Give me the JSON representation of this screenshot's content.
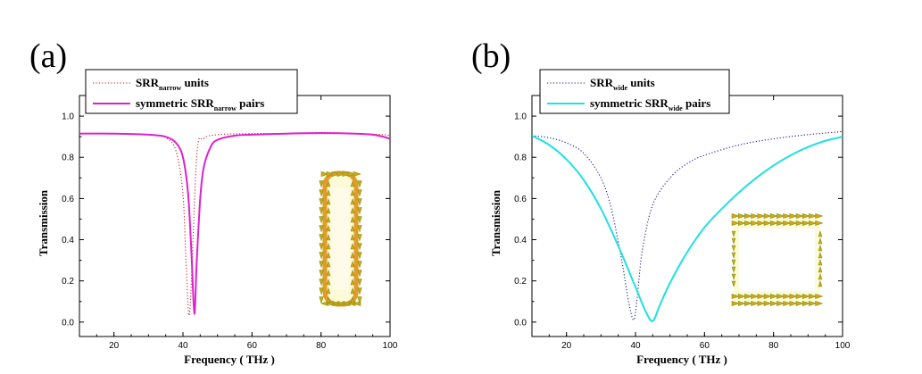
{
  "chart_data": [
    {
      "type": "line",
      "panel_label": "(a)",
      "xlabel": "Frequency ( THz )",
      "ylabel": "Transmission",
      "xlim": [
        10,
        100
      ],
      "ylim": [
        -0.07,
        1.1
      ],
      "xticks": [
        20,
        40,
        60,
        80,
        100
      ],
      "yticks": [
        0.0,
        0.2,
        0.4,
        0.6,
        0.8,
        1.0
      ],
      "ytick_labels": [
        "0.0",
        "0.2",
        "0.4",
        "0.6",
        "0.8",
        "1.0"
      ],
      "legend_position": "top-left",
      "series": [
        {
          "name": "SRR narrow units",
          "legend": {
            "base": "SRR",
            "sub": "narrow",
            "suffix": " units"
          },
          "color": "#cc2222",
          "style": "dotted",
          "x": [
            10,
            20,
            30,
            35,
            38,
            40,
            41,
            42,
            44,
            46,
            50,
            60,
            70,
            80,
            90,
            98,
            100
          ],
          "y": [
            0.915,
            0.915,
            0.91,
            0.895,
            0.83,
            0.62,
            0.25,
            0.055,
            0.81,
            0.89,
            0.91,
            0.915,
            0.915,
            0.915,
            0.915,
            0.91,
            0.905
          ]
        },
        {
          "name": "symmetric SRR narrow pairs",
          "legend": {
            "base": "symmetric SRR",
            "sub": "narrow",
            "suffix": " pairs"
          },
          "color": "#dd22cc",
          "style": "solid",
          "x": [
            10,
            20,
            30,
            35,
            38,
            40,
            41.5,
            42.5,
            43.3,
            44,
            45,
            46,
            48,
            50,
            55,
            60,
            70,
            80,
            90,
            95,
            98,
            100
          ],
          "y": [
            0.915,
            0.915,
            0.91,
            0.9,
            0.87,
            0.8,
            0.62,
            0.32,
            0.04,
            0.3,
            0.6,
            0.75,
            0.85,
            0.885,
            0.905,
            0.91,
            0.915,
            0.918,
            0.915,
            0.91,
            0.9,
            0.89
          ]
        }
      ]
    },
    {
      "type": "line",
      "panel_label": "(b)",
      "xlabel": "Frequency ( THz )",
      "ylabel": "Transmission",
      "xlim": [
        10,
        100
      ],
      "ylim": [
        -0.07,
        1.1
      ],
      "xticks": [
        20,
        40,
        60,
        80,
        100
      ],
      "yticks": [
        0.0,
        0.2,
        0.4,
        0.6,
        0.8,
        1.0
      ],
      "ytick_labels": [
        "0.0",
        "0.2",
        "0.4",
        "0.6",
        "0.8",
        "1.0"
      ],
      "legend_position": "top-left",
      "series": [
        {
          "name": "SRR wide units",
          "legend": {
            "base": "SRR",
            "sub": "wide",
            "suffix": " units"
          },
          "color": "#1a1a8c",
          "style": "dotted",
          "x": [
            10,
            15,
            20,
            25,
            30,
            33,
            36,
            38,
            39.5,
            40.5,
            42,
            45,
            50,
            55,
            60,
            70,
            80,
            90,
            100
          ],
          "y": [
            0.905,
            0.895,
            0.87,
            0.82,
            0.7,
            0.55,
            0.3,
            0.1,
            0.01,
            0.12,
            0.35,
            0.57,
            0.7,
            0.77,
            0.81,
            0.86,
            0.89,
            0.91,
            0.925
          ]
        },
        {
          "name": "symmetric SRR wide pairs",
          "legend": {
            "base": "symmetric SRR",
            "sub": "wide",
            "suffix": " pairs"
          },
          "color": "#22e0e0",
          "style": "solid",
          "x": [
            10,
            15,
            20,
            25,
            30,
            35,
            40,
            43,
            45,
            47,
            50,
            55,
            60,
            65,
            70,
            75,
            80,
            85,
            90,
            95,
            100
          ],
          "y": [
            0.905,
            0.86,
            0.79,
            0.69,
            0.55,
            0.37,
            0.17,
            0.05,
            0.005,
            0.08,
            0.19,
            0.34,
            0.46,
            0.55,
            0.63,
            0.7,
            0.76,
            0.81,
            0.85,
            0.88,
            0.9
          ]
        }
      ]
    }
  ]
}
